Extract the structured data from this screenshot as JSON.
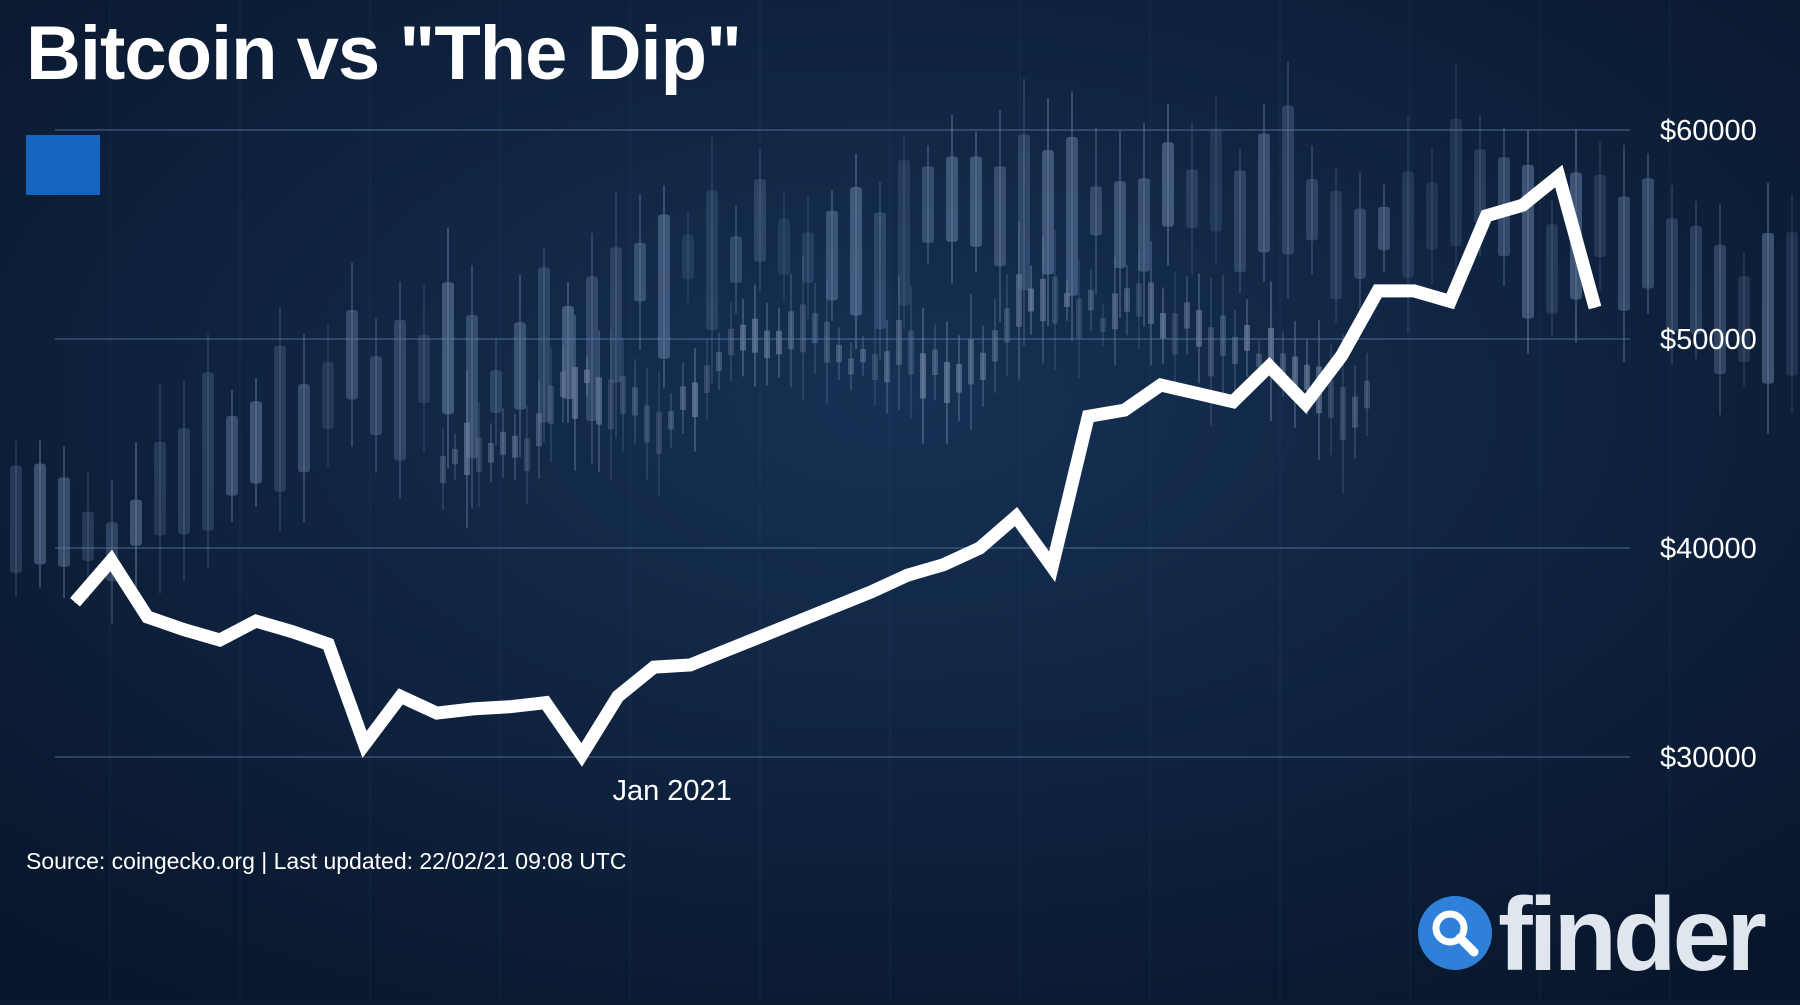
{
  "header": {
    "title": "Bitcoin vs \"The Dip\""
  },
  "footer": {
    "source": "Source: coingecko.org | Last updated: 22/02/21 09:08 UTC"
  },
  "brand": {
    "name": "finder",
    "accent": "#2f80d8",
    "logo_icon": "magnifier-icon"
  },
  "colors": {
    "background": "#0b1a30",
    "line": "#ffffff",
    "legend_swatch": "#1565c0",
    "tick_text": "#ffffff"
  },
  "chart_data": {
    "type": "line",
    "title": "Bitcoin vs \"The Dip\"",
    "xlabel": "",
    "ylabel": "",
    "ylim": [
      30000,
      60000
    ],
    "y_ticks": [
      30000,
      40000,
      50000,
      60000
    ],
    "y_tick_labels": [
      "$30000",
      "$40000",
      "$50000",
      "$60000"
    ],
    "x_tick_labels": [
      {
        "label": "Jan 2021",
        "index": 16.5
      }
    ],
    "grid": true,
    "series": [
      {
        "name": "",
        "values": [
          37400,
          39400,
          36700,
          36100,
          35600,
          36500,
          36000,
          35400,
          30600,
          32900,
          32100,
          32300,
          32400,
          32600,
          30100,
          32900,
          34300,
          34400,
          35100,
          35800,
          36500,
          37200,
          37900,
          38700,
          39200,
          40000,
          41500,
          39100,
          46300,
          46600,
          47800,
          47400,
          47000,
          48700,
          46900,
          49200,
          52300,
          52300,
          51800,
          55900,
          56400,
          57800,
          51500
        ]
      }
    ]
  }
}
